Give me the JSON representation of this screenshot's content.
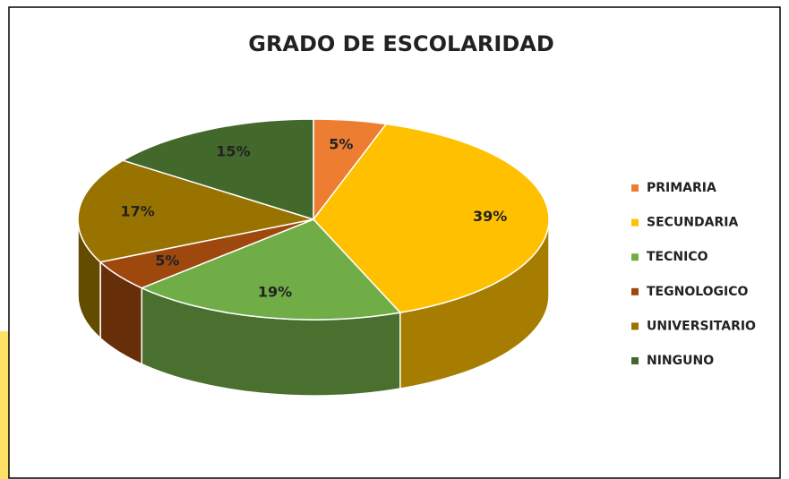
{
  "chart_data": {
    "type": "pie3d",
    "title": "GRADO DE ESCOLARIDAD",
    "categories": [
      "PRIMARIA",
      "SECUNDARIA",
      "TECNICO",
      "TEGNOLOGICO",
      "UNIVERSITARIO",
      "NINGUNO"
    ],
    "values": [
      5,
      39,
      19,
      5,
      17,
      15
    ],
    "value_labels": [
      "5%",
      "39%",
      "19%",
      "5%",
      "17%",
      "15%"
    ],
    "colors": [
      "#ED7D31",
      "#FFC000",
      "#70AD47",
      "#9E480E",
      "#997300",
      "#43682B"
    ],
    "legend": "right"
  }
}
